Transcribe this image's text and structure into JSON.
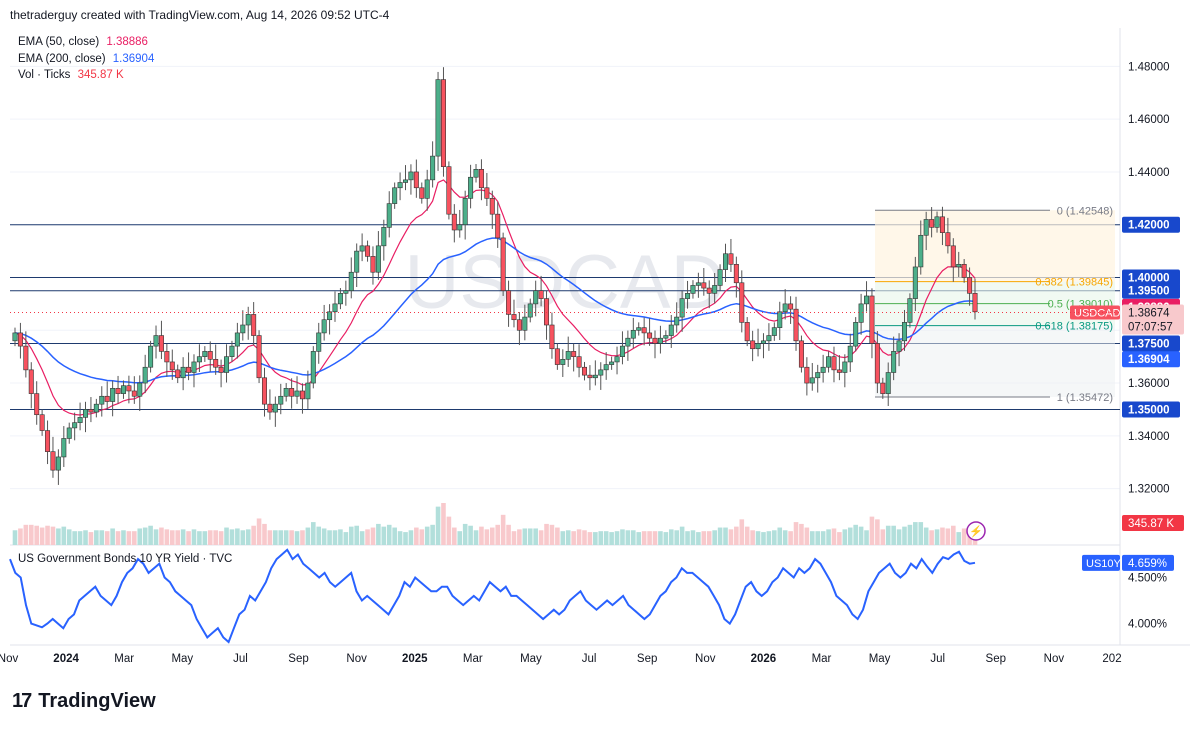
{
  "header": {
    "attribution": "thetraderguy created with TradingView.com, Aug 14, 2026 09:52 UTC-4"
  },
  "legend": [
    {
      "label": "EMA (50, close)",
      "value": "1.38886",
      "color": "#e91e63"
    },
    {
      "label": "EMA (200, close)",
      "value": "1.36904",
      "color": "#2962ff"
    },
    {
      "label": "Vol · Ticks",
      "value": "345.87 K",
      "color": "#f23645"
    }
  ],
  "watermark": "USDCAD",
  "sub_pane": {
    "title": "US Government Bonds 10 YR Yield · TVC",
    "symbol": "US10Y",
    "value": "4.659%",
    "color": "#2962ff"
  },
  "footer": {
    "brand": "TradingView"
  },
  "chart_data": [
    {
      "type": "candlestick",
      "symbol": "USDCAD",
      "ylim": [
        1.31,
        1.49
      ],
      "y_ticks": [
        "1.48000",
        "1.46000",
        "1.44000",
        "1.42000",
        "1.40000",
        "1.38000",
        "1.36000",
        "1.34000",
        "1.32000"
      ],
      "x_ticks": [
        "Nov",
        "2024",
        "Mar",
        "May",
        "Jul",
        "Sep",
        "Nov",
        "2025",
        "Mar",
        "May",
        "Jul",
        "Sep",
        "Nov",
        "2026",
        "Mar",
        "May",
        "Jul",
        "Sep",
        "Nov",
        "202"
      ],
      "price_label": {
        "symbol": "USDCAD",
        "value": "1.38674",
        "countdown": "07:07:57"
      },
      "horizontal_levels": [
        {
          "value": 1.42,
          "label": "1.42000"
        },
        {
          "value": 1.4,
          "label": "1.40000"
        },
        {
          "value": 1.395,
          "label": "1.39500"
        },
        {
          "value": 1.375,
          "label": "1.37500"
        },
        {
          "value": 1.35,
          "label": "1.35000"
        }
      ],
      "ema_labels": [
        {
          "value": 1.38886,
          "label": "1.38886",
          "color": "#e91e63"
        },
        {
          "value": 1.36904,
          "label": "1.36904",
          "color": "#2962ff"
        }
      ],
      "fibonacci": [
        {
          "ratio": "0",
          "value": 1.42548,
          "text": "0 (1.42548)",
          "color": "#787b86"
        },
        {
          "ratio": "0.382",
          "value": 1.39845,
          "text": "0.382 (1.39845)",
          "color": "#f7a600"
        },
        {
          "ratio": "0.5",
          "value": 1.3901,
          "text": "0.5 (1.39010)",
          "color": "#4caf50"
        },
        {
          "ratio": "0.618",
          "value": 1.38175,
          "text": "0.618 (1.38175)",
          "color": "#089981"
        },
        {
          "ratio": "1",
          "value": 1.35472,
          "text": "1 (1.35472)",
          "color": "#787b86"
        }
      ],
      "volume_label": "345.87 K",
      "closes": [
        1.379,
        1.374,
        1.365,
        1.356,
        1.348,
        1.342,
        1.334,
        1.327,
        1.332,
        1.339,
        1.343,
        1.345,
        1.347,
        1.35,
        1.349,
        1.352,
        1.355,
        1.353,
        1.358,
        1.356,
        1.359,
        1.357,
        1.355,
        1.36,
        1.366,
        1.374,
        1.378,
        1.372,
        1.368,
        1.365,
        1.362,
        1.366,
        1.364,
        1.368,
        1.37,
        1.372,
        1.369,
        1.366,
        1.364,
        1.37,
        1.374,
        1.379,
        1.382,
        1.386,
        1.378,
        1.362,
        1.352,
        1.349,
        1.352,
        1.355,
        1.358,
        1.355,
        1.357,
        1.354,
        1.36,
        1.372,
        1.379,
        1.384,
        1.387,
        1.39,
        1.394,
        1.395,
        1.402,
        1.41,
        1.412,
        1.408,
        1.402,
        1.412,
        1.419,
        1.428,
        1.434,
        1.436,
        1.437,
        1.44,
        1.434,
        1.43,
        1.437,
        1.446,
        1.475,
        1.442,
        1.424,
        1.418,
        1.42,
        1.43,
        1.438,
        1.441,
        1.434,
        1.43,
        1.424,
        1.415,
        1.395,
        1.386,
        1.384,
        1.38,
        1.385,
        1.39,
        1.395,
        1.392,
        1.382,
        1.373,
        1.367,
        1.369,
        1.372,
        1.37,
        1.366,
        1.363,
        1.362,
        1.363,
        1.365,
        1.367,
        1.368,
        1.37,
        1.374,
        1.377,
        1.38,
        1.381,
        1.379,
        1.377,
        1.375,
        1.377,
        1.378,
        1.382,
        1.385,
        1.392,
        1.394,
        1.397,
        1.398,
        1.396,
        1.394,
        1.397,
        1.403,
        1.409,
        1.405,
        1.398,
        1.383,
        1.376,
        1.373,
        1.375,
        1.376,
        1.378,
        1.381,
        1.387,
        1.39,
        1.388,
        1.376,
        1.366,
        1.36,
        1.362,
        1.364,
        1.366,
        1.37,
        1.365,
        1.364,
        1.368,
        1.374,
        1.383,
        1.39,
        1.393,
        1.375,
        1.36,
        1.356,
        1.364,
        1.372,
        1.376,
        1.383,
        1.392,
        1.404,
        1.416,
        1.422,
        1.419,
        1.423,
        1.417,
        1.412,
        1.404,
        1.405,
        1.4,
        1.394,
        1.387
      ]
    },
    {
      "type": "line",
      "symbol": "US10Y",
      "ylim": [
        3.8,
        4.82
      ],
      "y_ticks": [
        "4.500%",
        "4.000%"
      ],
      "series": [
        {
          "name": "US10Y",
          "values": [
            4.7,
            4.55,
            4.5,
            4.2,
            4.0,
            3.98,
            3.96,
            4.0,
            4.05,
            4.0,
            3.95,
            4.05,
            4.1,
            4.25,
            4.3,
            4.35,
            4.4,
            4.3,
            4.25,
            4.2,
            4.3,
            4.45,
            4.55,
            4.6,
            4.7,
            4.65,
            4.55,
            4.6,
            4.65,
            4.5,
            4.45,
            4.35,
            4.3,
            4.25,
            4.2,
            4.05,
            3.95,
            3.85,
            3.9,
            3.95,
            3.85,
            3.8,
            3.95,
            4.1,
            4.15,
            4.3,
            4.25,
            4.35,
            4.45,
            4.6,
            4.7,
            4.75,
            4.8,
            4.7,
            4.75,
            4.65,
            4.6,
            4.55,
            4.5,
            4.55,
            4.45,
            4.4,
            4.45,
            4.5,
            4.55,
            4.35,
            4.25,
            4.3,
            4.25,
            4.2,
            4.15,
            4.1,
            4.2,
            4.3,
            4.45,
            4.4,
            4.5,
            4.45,
            4.4,
            4.35,
            4.35,
            4.4,
            4.4,
            4.3,
            4.25,
            4.2,
            4.25,
            4.3,
            4.25,
            4.35,
            4.45,
            4.4,
            4.35,
            4.4,
            4.3,
            4.3,
            4.25,
            4.2,
            4.15,
            4.1,
            4.05,
            4.1,
            4.15,
            4.1,
            4.15,
            4.25,
            4.3,
            4.35,
            4.25,
            4.2,
            4.15,
            4.2,
            4.25,
            4.2,
            4.25,
            4.3,
            4.2,
            4.15,
            4.1,
            4.05,
            4.1,
            4.2,
            4.3,
            4.35,
            4.45,
            4.5,
            4.6,
            4.55,
            4.55,
            4.5,
            4.45,
            4.4,
            4.3,
            4.2,
            4.05,
            4.0,
            4.1,
            4.25,
            4.4,
            4.45,
            4.35,
            4.3,
            4.35,
            4.45,
            4.5,
            4.6,
            4.55,
            4.5,
            4.6,
            4.55,
            4.6,
            4.7,
            4.65,
            4.55,
            4.45,
            4.3,
            4.25,
            4.2,
            4.1,
            4.05,
            4.15,
            4.35,
            4.45,
            4.55,
            4.6,
            4.65,
            4.55,
            4.5,
            4.55,
            4.65,
            4.6,
            4.7,
            4.62,
            4.55,
            4.65,
            4.72,
            4.7,
            4.75,
            4.78,
            4.68,
            4.65,
            4.659
          ]
        }
      ]
    }
  ]
}
